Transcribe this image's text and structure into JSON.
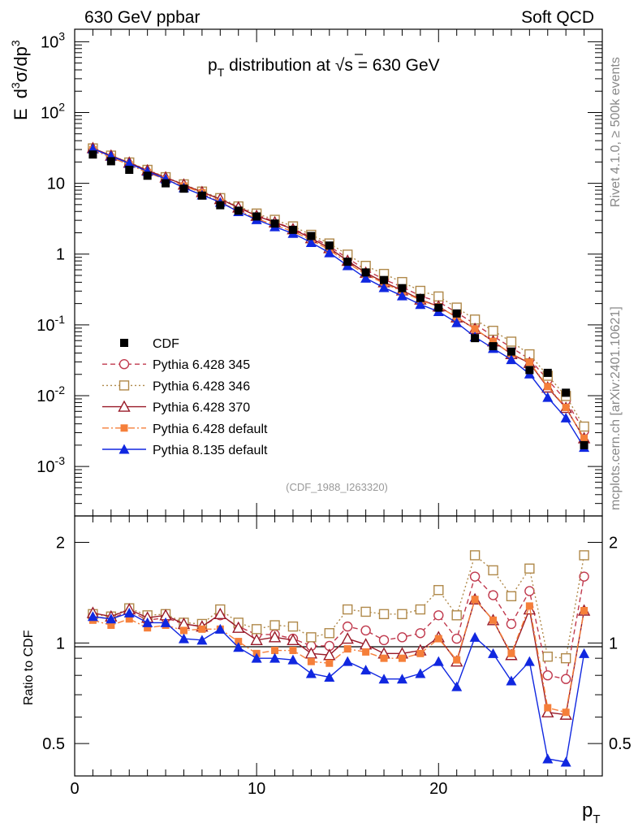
{
  "header": {
    "left": "630 GeV ppbar",
    "right": "Soft QCD"
  },
  "title": {
    "prefix": "p",
    "sub": "T",
    "middle": " distribution at ",
    "sqrt": "√",
    "s": "s",
    "suffix": " = 630 GeV"
  },
  "ylabel_main": {
    "e": "E",
    "d1": "d",
    "sup1": "3",
    "sigma": "σ/dp",
    "sup2": "3"
  },
  "ylabel_ratio": "Ratio to CDF",
  "xlabel": {
    "p": "p",
    "sub": "T"
  },
  "side_text_top": "Rivet 4.1.0, ≥ 500k events",
  "side_text_bottom": "mcplots.cern.ch [arXiv:2401.10621]",
  "watermark": "(CDF_1988_I263320)",
  "main_y_ticks": [
    {
      "b": "10",
      "e": "-3"
    },
    {
      "b": "10",
      "e": "-2"
    },
    {
      "b": "10",
      "e": "-1"
    },
    {
      "b": "1",
      "e": ""
    },
    {
      "b": "10",
      "e": ""
    },
    {
      "b": "10",
      "e": "2"
    },
    {
      "b": "10",
      "e": "3"
    }
  ],
  "ratio_y_ticks": [
    "0.5",
    "1",
    "2"
  ],
  "x_ticks": [
    "0",
    "10",
    "20"
  ],
  "chart_data": {
    "type": "line",
    "title": "pT distribution at √s = 630 GeV",
    "xlabel": "pT",
    "ylabel": "E d3σ/dp3",
    "xlim": [
      0,
      29
    ],
    "ylim": [
      0.0002,
      1500
    ],
    "yscale": "log",
    "ratio_ylim": [
      0.4,
      2.4
    ],
    "ratio_ylabel": "Ratio to CDF",
    "legend_position": "lower-left",
    "x": [
      1,
      2,
      3,
      4,
      5,
      6,
      7,
      8,
      9,
      10,
      11,
      12,
      13,
      14,
      15,
      16,
      17,
      18,
      19,
      20,
      21,
      22,
      23,
      24,
      25,
      26,
      27,
      28
    ],
    "data": {
      "name": "CDF",
      "values": [
        25.5,
        20.5,
        15.5,
        12.8,
        10.0,
        8.4,
        6.7,
        4.9,
        4.1,
        3.4,
        2.7,
        2.2,
        1.8,
        1.32,
        0.78,
        0.55,
        0.43,
        0.33,
        0.24,
        0.175,
        0.145,
        0.065,
        0.05,
        0.042,
        0.023,
        0.021,
        0.011,
        0.002
      ]
    },
    "series": [
      {
        "name": "Pythia 6.428 345",
        "color": "#c0394d",
        "marker": "open-circle",
        "dash": "dashed",
        "ratio": [
          1.2,
          1.18,
          1.25,
          1.17,
          1.19,
          1.14,
          1.12,
          1.21,
          1.12,
          1.06,
          1.06,
          1.03,
          0.98,
          0.98,
          1.12,
          1.09,
          1.02,
          1.04,
          1.07,
          1.21,
          1.03,
          1.58,
          1.39,
          1.14,
          1.43,
          0.8,
          0.78,
          1.58
        ]
      },
      {
        "name": "Pythia 6.428 346",
        "color": "#b0894a",
        "marker": "open-square",
        "dash": "dotted",
        "ratio": [
          1.22,
          1.2,
          1.27,
          1.21,
          1.22,
          1.15,
          1.14,
          1.26,
          1.15,
          1.1,
          1.13,
          1.12,
          1.04,
          1.07,
          1.26,
          1.24,
          1.22,
          1.22,
          1.26,
          1.44,
          1.21,
          1.83,
          1.65,
          1.38,
          1.67,
          0.91,
          0.9,
          1.83
        ]
      },
      {
        "name": "Pythia 6.428 370",
        "color": "#991a28",
        "marker": "open-triangle",
        "dash": "solid",
        "ratio": [
          1.23,
          1.2,
          1.26,
          1.19,
          1.21,
          1.14,
          1.12,
          1.22,
          1.11,
          1.02,
          1.04,
          1.02,
          0.93,
          0.92,
          1.03,
          0.99,
          0.93,
          0.93,
          0.95,
          1.04,
          0.88,
          1.35,
          1.17,
          0.92,
          1.26,
          0.62,
          0.61,
          1.25
        ]
      },
      {
        "name": "Pythia 6.428 default",
        "color": "#f57f3a",
        "marker": "filled-square",
        "dash": "dashdot",
        "ratio": [
          1.17,
          1.13,
          1.18,
          1.11,
          1.13,
          1.09,
          1.1,
          1.1,
          1.01,
          0.93,
          0.95,
          0.95,
          0.88,
          0.87,
          0.96,
          0.94,
          0.9,
          0.9,
          0.93,
          1.03,
          0.89,
          1.35,
          1.17,
          0.93,
          1.29,
          0.64,
          0.62,
          1.25
        ]
      },
      {
        "name": "Pythia 8.135 default",
        "color": "#1027e0",
        "marker": "filled-triangle",
        "dash": "solid",
        "ratio": [
          1.2,
          1.18,
          1.23,
          1.15,
          1.15,
          1.03,
          1.02,
          1.1,
          0.97,
          0.9,
          0.9,
          0.89,
          0.81,
          0.79,
          0.88,
          0.83,
          0.78,
          0.78,
          0.81,
          0.88,
          0.74,
          1.04,
          0.93,
          0.77,
          0.88,
          0.45,
          0.44,
          0.93
        ]
      }
    ]
  }
}
